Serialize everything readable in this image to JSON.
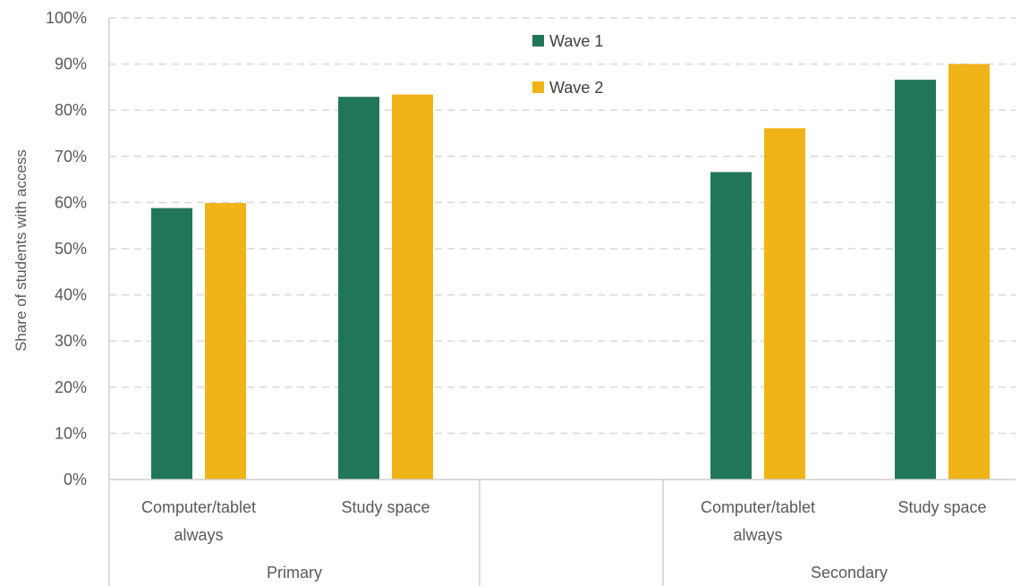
{
  "chart_data": {
    "type": "bar",
    "ylabel": "Share of students with access",
    "ylim": [
      0,
      100
    ],
    "ytick_step": 10,
    "ytick_labels": [
      "0%",
      "10%",
      "20%",
      "30%",
      "40%",
      "50%",
      "60%",
      "70%",
      "80%",
      "90%",
      "100%"
    ],
    "grid": "horizontal dashed",
    "legend_position": "top-center",
    "groups": [
      {
        "name": "Primary",
        "categories": [
          {
            "label_lines": [
              "Computer/tablet",
              "always"
            ]
          },
          {
            "label_lines": [
              "Study space"
            ]
          }
        ]
      },
      {
        "name": "Secondary",
        "categories": [
          {
            "label_lines": [
              "Computer/tablet",
              "always"
            ]
          },
          {
            "label_lines": [
              "Study space"
            ]
          }
        ]
      }
    ],
    "series": [
      {
        "name": "Wave 1",
        "color": "#217659",
        "values": [
          58.8,
          82.9,
          66.6,
          86.6
        ]
      },
      {
        "name": "Wave 2",
        "color": "#F0B418",
        "values": [
          59.9,
          83.4,
          76.1,
          90.0
        ]
      }
    ]
  }
}
